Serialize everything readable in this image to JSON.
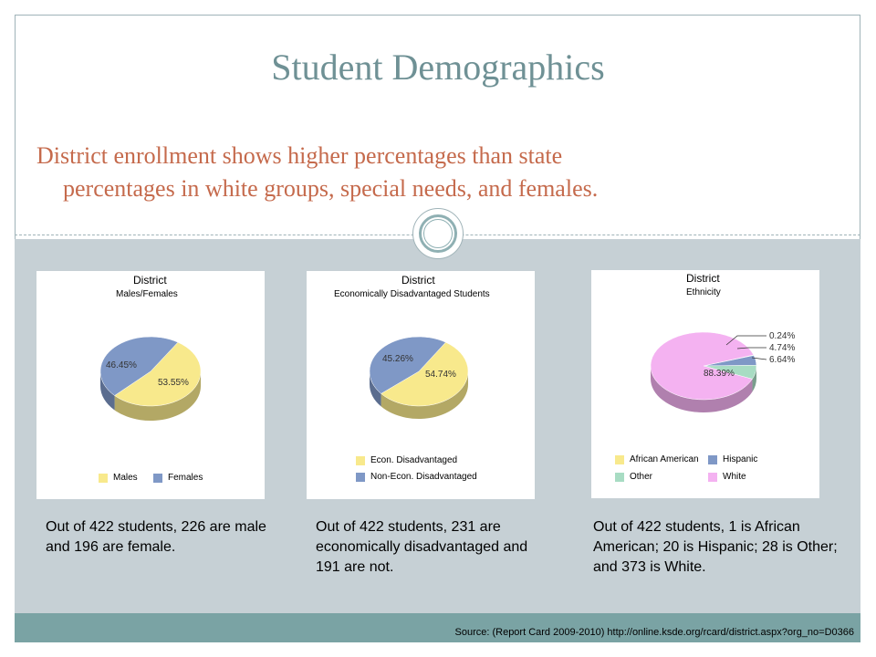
{
  "slide": {
    "title": "Student Demographics",
    "subtitle_line1": "District enrollment shows higher percentages than state",
    "subtitle_line2": "percentages in white groups, special needs, and females.",
    "source": "Source: (Report Card 2009-2010) http://online.ksde.org/rcard/district.aspx?org_no=D0366"
  },
  "colors": {
    "title": "#6f9195",
    "subtitle": "#c56a4c",
    "yellow": "#f8e98c",
    "blue": "#7f98c6",
    "green": "#a8dcc3",
    "pink": "#f4b2f1"
  },
  "panels": [
    {
      "title": "District",
      "subtitle": "Males/Females",
      "legend": [
        "Males",
        "Females"
      ],
      "labels": [
        "53.55%",
        "46.45%"
      ],
      "caption": "Out of 422 students, 226 are male and 196 are female."
    },
    {
      "title": "District",
      "subtitle": "Economically Disadvantaged Students",
      "legend": [
        "Econ. Disadvantaged",
        "Non-Econ. Disadvantaged"
      ],
      "labels": [
        "54.74%",
        "45.26%"
      ],
      "caption": "Out of 422 students, 231 are economically disadvantaged and 191 are not."
    },
    {
      "title": "District",
      "subtitle": "Ethnicity",
      "legend": [
        "African American",
        "Hispanic",
        "Other",
        "White"
      ],
      "labels": [
        "0.24%",
        "4.74%",
        "6.64%",
        "88.39%"
      ],
      "caption": "Out of 422 students, 1 is African American; 20 is Hispanic; 28 is Other; and 373 is White."
    }
  ],
  "chart_data": [
    {
      "type": "pie",
      "title": "District",
      "subtitle": "Males/Females",
      "categories": [
        "Males",
        "Females"
      ],
      "values": [
        53.55,
        46.45
      ],
      "legend": "bottom"
    },
    {
      "type": "pie",
      "title": "District",
      "subtitle": "Economically Disadvantaged Students",
      "categories": [
        "Econ. Disadvantaged",
        "Non-Econ. Disadvantaged"
      ],
      "values": [
        54.74,
        45.26
      ],
      "legend": "bottom"
    },
    {
      "type": "pie",
      "title": "District",
      "subtitle": "Ethnicity",
      "categories": [
        "African American",
        "Hispanic",
        "Other",
        "White"
      ],
      "values": [
        0.24,
        4.74,
        6.64,
        88.39
      ],
      "legend": "bottom"
    }
  ]
}
